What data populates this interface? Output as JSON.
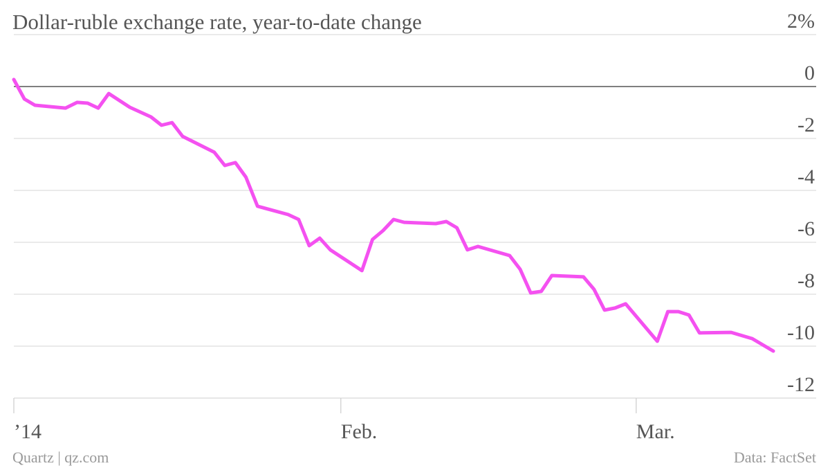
{
  "chart_data": {
    "type": "line",
    "title": "Dollar-ruble exchange rate, year-to-date change",
    "source": "Data: FactSet",
    "credit": "Quartz | qz.com",
    "x": [
      0,
      1,
      2,
      4.9,
      6,
      7,
      8,
      9,
      11,
      13,
      14,
      15,
      16,
      19,
      20,
      21,
      22,
      23.1,
      26,
      27,
      28,
      29,
      30,
      33,
      34,
      35,
      36,
      37,
      40,
      41,
      42,
      43,
      44,
      47,
      48,
      49,
      50,
      51,
      54,
      55,
      56,
      57,
      58,
      61,
      62,
      63,
      64,
      65,
      68,
      70,
      72
    ],
    "series": [
      {
        "color": "#f451f0",
        "values": [
          0.27,
          -0.48,
          -0.72,
          -0.83,
          -0.61,
          -0.64,
          -0.83,
          -0.27,
          -0.8,
          -1.17,
          -1.49,
          -1.39,
          -1.92,
          -2.53,
          -3.04,
          -2.93,
          -3.49,
          -4.61,
          -4.93,
          -5.12,
          -6.13,
          -5.84,
          -6.29,
          -7.09,
          -5.89,
          -5.55,
          -5.12,
          -5.23,
          -5.28,
          -5.2,
          -5.44,
          -6.29,
          -6.16,
          -6.51,
          -7.04,
          -7.95,
          -7.89,
          -7.28,
          -7.33,
          -7.81,
          -8.61,
          -8.53,
          -8.37,
          -9.81,
          -8.67,
          -8.67,
          -8.8,
          -9.49,
          -9.47,
          -9.71,
          -10.19
        ]
      }
    ],
    "xlim": [
      0,
      74.75
    ],
    "xticks": [
      {
        "value": 0,
        "label": "’14"
      },
      {
        "value": 31,
        "label": "Feb."
      },
      {
        "value": 59,
        "label": "Mar."
      }
    ],
    "ylim": [
      -12,
      2
    ],
    "yticks": [
      {
        "value": 2,
        "label": "2%"
      },
      0,
      -2,
      -4,
      -6,
      -8,
      -10,
      -12
    ],
    "grid": true
  }
}
